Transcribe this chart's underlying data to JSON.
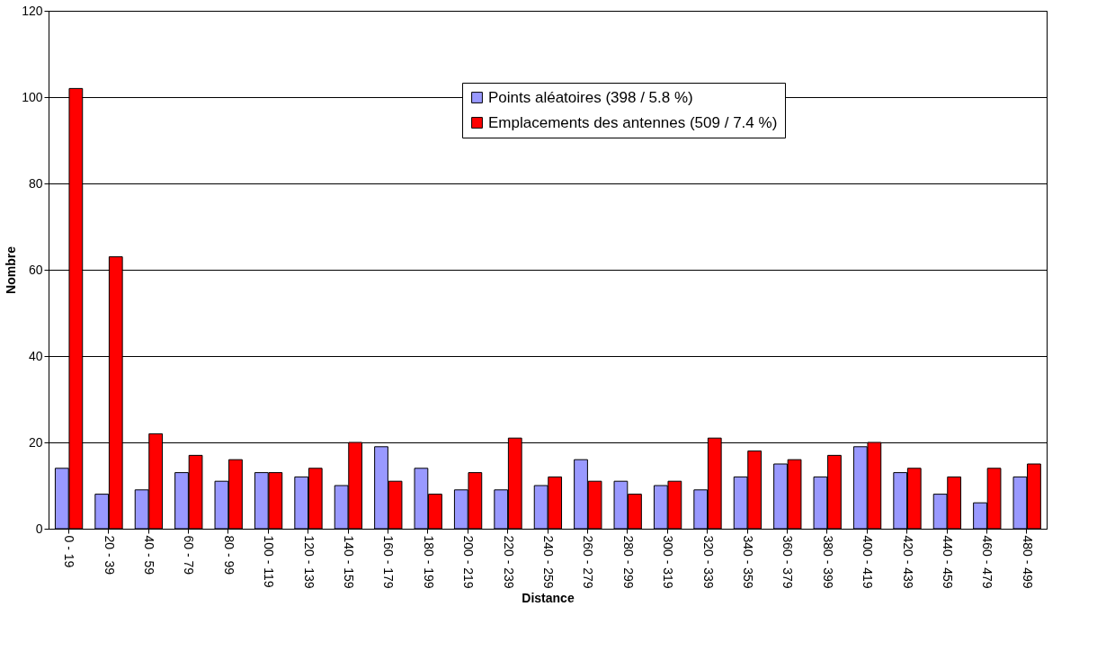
{
  "chart_data": {
    "type": "bar",
    "xlabel": "Distance",
    "ylabel": "Nombre",
    "categories": [
      "0 - 19",
      "20 - 39",
      "40 - 59",
      "60 - 79",
      "80 - 99",
      "100 - 119",
      "120 - 139",
      "140 - 159",
      "160 - 179",
      "180 - 199",
      "200 - 219",
      "220 - 239",
      "240 - 259",
      "260 - 279",
      "280 - 299",
      "300 - 319",
      "320 - 339",
      "340 - 359",
      "360 - 379",
      "380 - 399",
      "400 - 419",
      "420 - 439",
      "440 - 459",
      "460 - 479",
      "480 - 499"
    ],
    "series": [
      {
        "name": "Points aléatoires (398 / 5.8 %)",
        "color": "#9999ff",
        "values": [
          14,
          8,
          9,
          13,
          11,
          13,
          12,
          10,
          19,
          14,
          9,
          9,
          10,
          16,
          11,
          10,
          9,
          12,
          15,
          12,
          19,
          13,
          8,
          6,
          12
        ]
      },
      {
        "name": "Emplacements des antennes (509 / 7.4 %)",
        "color": "#ff0000",
        "values": [
          102,
          63,
          22,
          17,
          16,
          13,
          14,
          20,
          11,
          8,
          13,
          21,
          12,
          11,
          8,
          11,
          21,
          18,
          16,
          17,
          20,
          14,
          12,
          14,
          15
        ]
      }
    ],
    "ylim": [
      0,
      120
    ],
    "yticks": [
      0,
      20,
      40,
      60,
      80,
      100,
      120
    ],
    "grid": "y",
    "legend": "top right"
  }
}
